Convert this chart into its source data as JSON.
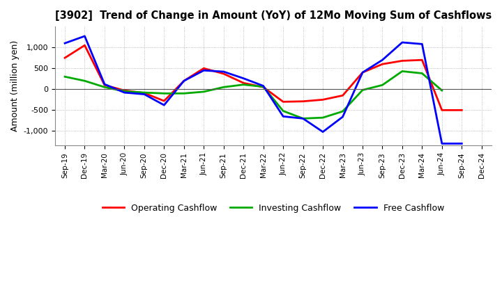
{
  "title": "[3902]  Trend of Change in Amount (YoY) of 12Mo Moving Sum of Cashflows",
  "ylabel": "Amount (million yen)",
  "categories": [
    "Sep-19",
    "Dec-19",
    "Mar-20",
    "Jun-20",
    "Sep-20",
    "Dec-20",
    "Mar-21",
    "Jun-21",
    "Sep-21",
    "Dec-21",
    "Mar-22",
    "Jun-22",
    "Sep-22",
    "Dec-22",
    "Mar-23",
    "Jun-23",
    "Sep-23",
    "Dec-23",
    "Mar-24",
    "Jun-24",
    "Sep-24",
    "Dec-24"
  ],
  "operating": [
    750,
    1050,
    100,
    -30,
    -90,
    -280,
    200,
    500,
    370,
    150,
    50,
    -300,
    -290,
    -250,
    -150,
    400,
    600,
    680,
    700,
    -500,
    -500,
    null
  ],
  "investing": [
    300,
    200,
    50,
    -50,
    -80,
    -100,
    -100,
    -60,
    50,
    110,
    60,
    -520,
    -700,
    -680,
    -530,
    -20,
    100,
    430,
    380,
    -30,
    null,
    null
  ],
  "free": [
    1100,
    1270,
    120,
    -80,
    -120,
    -380,
    200,
    450,
    420,
    260,
    80,
    -650,
    -700,
    -1020,
    -660,
    400,
    700,
    1120,
    1080,
    -1300,
    -1300,
    null
  ],
  "operating_color": "#ff0000",
  "investing_color": "#00aa00",
  "free_color": "#0000ff",
  "ylim": [
    -1350,
    1500
  ],
  "yticks": [
    -1000,
    -500,
    0,
    500,
    1000
  ],
  "background_color": "#ffffff",
  "grid_color": "#aaaaaa",
  "line_width": 2.0,
  "legend_labels": [
    "Operating Cashflow",
    "Investing Cashflow",
    "Free Cashflow"
  ]
}
